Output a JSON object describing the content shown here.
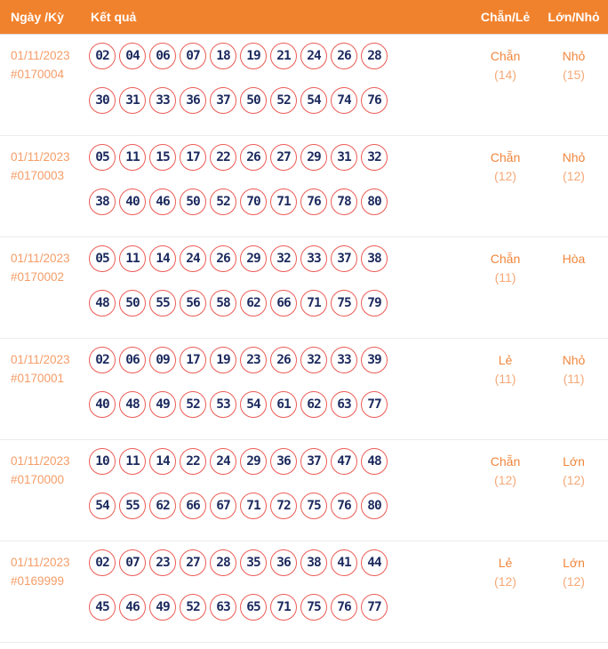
{
  "header": {
    "col_date": "Ngày /Kỳ",
    "col_result": "Kết quả",
    "col_even_odd": "Chẵn/Lẻ",
    "col_big_small": "Lớn/Nhỏ"
  },
  "colors": {
    "header_bg": "#f1822d",
    "header_text": "#ffffff",
    "date_text": "#f59d68",
    "ball_border": "#ec5b55",
    "ball_text": "#1c2a5e",
    "stat_label": "#f0863c",
    "stat_count": "#f5a877"
  },
  "rows": [
    {
      "date": "01/11/2023",
      "period": "#0170004",
      "numbers_line1": [
        "02",
        "04",
        "06",
        "07",
        "18",
        "19",
        "21",
        "24",
        "26",
        "28"
      ],
      "numbers_line2": [
        "30",
        "31",
        "33",
        "36",
        "37",
        "50",
        "52",
        "54",
        "74",
        "76"
      ],
      "even_odd": {
        "label": "Chẵn",
        "count": "(14)"
      },
      "big_small": {
        "label": "Nhỏ",
        "count": "(15)"
      }
    },
    {
      "date": "01/11/2023",
      "period": "#0170003",
      "numbers_line1": [
        "05",
        "11",
        "15",
        "17",
        "22",
        "26",
        "27",
        "29",
        "31",
        "32"
      ],
      "numbers_line2": [
        "38",
        "40",
        "46",
        "50",
        "52",
        "70",
        "71",
        "76",
        "78",
        "80"
      ],
      "even_odd": {
        "label": "Chẵn",
        "count": "(12)"
      },
      "big_small": {
        "label": "Nhỏ",
        "count": "(12)"
      }
    },
    {
      "date": "01/11/2023",
      "period": "#0170002",
      "numbers_line1": [
        "05",
        "11",
        "14",
        "24",
        "26",
        "29",
        "32",
        "33",
        "37",
        "38"
      ],
      "numbers_line2": [
        "48",
        "50",
        "55",
        "56",
        "58",
        "62",
        "66",
        "71",
        "75",
        "79"
      ],
      "even_odd": {
        "label": "Chẵn",
        "count": "(11)"
      },
      "big_small": {
        "label": "Hòa",
        "count": ""
      }
    },
    {
      "date": "01/11/2023",
      "period": "#0170001",
      "numbers_line1": [
        "02",
        "06",
        "09",
        "17",
        "19",
        "23",
        "26",
        "32",
        "33",
        "39"
      ],
      "numbers_line2": [
        "40",
        "48",
        "49",
        "52",
        "53",
        "54",
        "61",
        "62",
        "63",
        "77"
      ],
      "even_odd": {
        "label": "Lẻ",
        "count": "(11)"
      },
      "big_small": {
        "label": "Nhỏ",
        "count": "(11)"
      }
    },
    {
      "date": "01/11/2023",
      "period": "#0170000",
      "numbers_line1": [
        "10",
        "11",
        "14",
        "22",
        "24",
        "29",
        "36",
        "37",
        "47",
        "48"
      ],
      "numbers_line2": [
        "54",
        "55",
        "62",
        "66",
        "67",
        "71",
        "72",
        "75",
        "76",
        "80"
      ],
      "even_odd": {
        "label": "Chẵn",
        "count": "(12)"
      },
      "big_small": {
        "label": "Lớn",
        "count": "(12)"
      }
    },
    {
      "date": "01/11/2023",
      "period": "#0169999",
      "numbers_line1": [
        "02",
        "07",
        "23",
        "27",
        "28",
        "35",
        "36",
        "38",
        "41",
        "44"
      ],
      "numbers_line2": [
        "45",
        "46",
        "49",
        "52",
        "63",
        "65",
        "71",
        "75",
        "76",
        "77"
      ],
      "even_odd": {
        "label": "Lẻ",
        "count": "(12)"
      },
      "big_small": {
        "label": "Lớn",
        "count": "(12)"
      }
    }
  ]
}
